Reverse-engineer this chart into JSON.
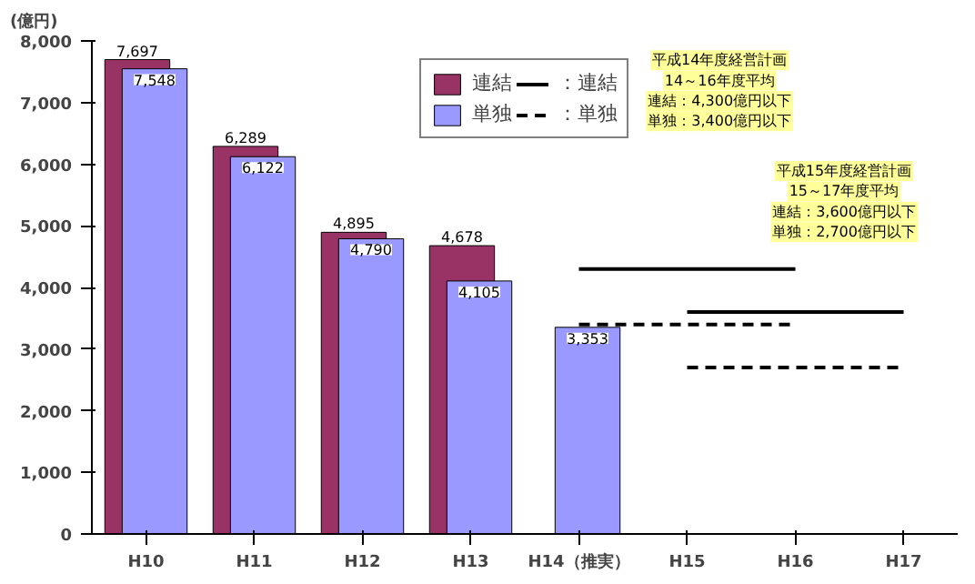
{
  "chart_data": {
    "type": "bar",
    "ylabel": "(億円)",
    "categories": [
      "H10",
      "H11",
      "H12",
      "H13",
      "H14（推実）",
      "H15",
      "H16",
      "H17"
    ],
    "series": [
      {
        "name": "連結",
        "color": "#993366",
        "values": [
          7697,
          6289,
          4895,
          4678,
          null,
          null,
          null,
          null
        ],
        "value_labels": [
          "7,697",
          "6,289",
          "4,895",
          "4,678",
          null,
          null,
          null,
          null
        ]
      },
      {
        "name": "単独",
        "color": "#9999ff",
        "values": [
          7548,
          6122,
          4790,
          4105,
          3353,
          null,
          null,
          null
        ],
        "value_labels": [
          "7,548",
          "6,122",
          "4,790",
          "4,105",
          "3,353",
          null,
          null,
          null
        ]
      },
      {
        "name": "：連結",
        "type": "line",
        "color": "#000000",
        "line_style": "solid",
        "values": [
          null,
          null,
          null,
          null,
          4300,
          4300,
          4300,
          null
        ]
      },
      {
        "name": "：単独",
        "type": "line",
        "color": "#000000",
        "line_style": "dashed",
        "values": [
          null,
          null,
          null,
          null,
          3400,
          3400,
          3400,
          null
        ]
      },
      {
        "type": "line",
        "color": "#000000",
        "line_style": "solid",
        "values": [
          null,
          null,
          null,
          null,
          null,
          3600,
          3600,
          3600
        ]
      },
      {
        "type": "line",
        "color": "#000000",
        "line_style": "dashed",
        "values": [
          null,
          null,
          null,
          null,
          null,
          2700,
          2700,
          2700
        ]
      }
    ],
    "ylim": [
      0,
      8000
    ],
    "yticks": [
      0,
      {
        "value": 1000,
        "label": "1,000"
      },
      {
        "value": 2000,
        "label": "2,000"
      },
      {
        "value": 3000,
        "label": "3,000"
      },
      {
        "value": 4000,
        "label": "4,000"
      },
      {
        "value": 5000,
        "label": "5,000"
      },
      {
        "value": 6000,
        "label": "6,000"
      },
      {
        "value": 7000,
        "label": "7,000"
      },
      {
        "value": 8000,
        "label": "8,000"
      }
    ],
    "grid": false,
    "legend": "top",
    "annotations": [
      "平成14年度経営計画",
      "14～16年度平均",
      "連結：4,300億円以下",
      "単独：3,400億円以下",
      "平成15年度経営計画",
      "15～17年度平均",
      "連結：3,600億円以下",
      "単独：2,700億円以下"
    ]
  }
}
